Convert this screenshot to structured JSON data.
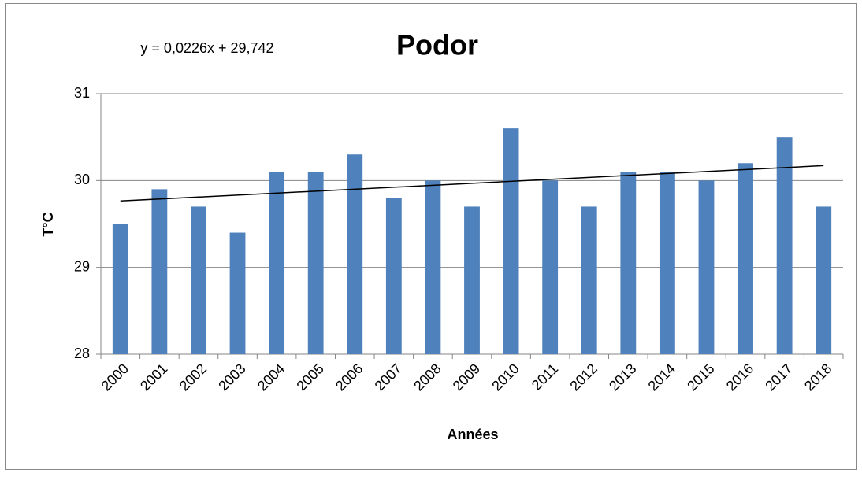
{
  "chart_data": {
    "type": "bar",
    "title": "Podor",
    "x_label": "Années",
    "y_label": "T°C",
    "categories": [
      "2000",
      "2001",
      "2002",
      "2003",
      "2004",
      "2005",
      "2006",
      "2007",
      "2008",
      "2009",
      "2010",
      "2011",
      "2012",
      "2013",
      "2014",
      "2015",
      "2016",
      "2017",
      "2018"
    ],
    "values": [
      29.5,
      29.9,
      29.7,
      29.4,
      30.1,
      30.1,
      30.3,
      29.8,
      30.0,
      29.7,
      30.6,
      30.0,
      29.7,
      30.1,
      30.1,
      30.0,
      30.2,
      30.5,
      29.7
    ],
    "color": "#4f81bd",
    "ylim": [
      28,
      31
    ],
    "yticks": [
      28,
      29,
      30,
      31
    ],
    "grid": true,
    "trendline": {
      "label": "y = 0,0226x + 29,742",
      "slope": 0.0226,
      "intercept": 29.742,
      "color": "#000000"
    }
  }
}
